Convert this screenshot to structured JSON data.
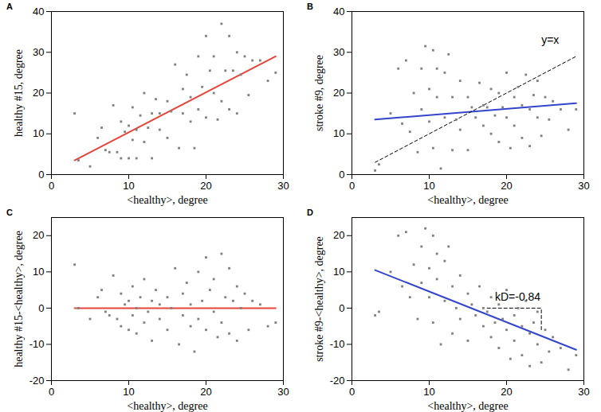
{
  "chart_data": [
    {
      "panel": "A",
      "type": "scatter",
      "x_label": "<healthy>, degree",
      "y_label": "healthy #15, degree",
      "xlim": [
        0,
        30
      ],
      "xticks": [
        0,
        10,
        20,
        30
      ],
      "ylim": [
        0,
        40
      ],
      "yticks": [
        0,
        10,
        20,
        30,
        40
      ],
      "color": "#808080",
      "marker": "square",
      "x": [
        3,
        3.5,
        5,
        6,
        6.5,
        7,
        7.5,
        8,
        8.5,
        9,
        9,
        9.5,
        10,
        10,
        10.5,
        10.5,
        11,
        11,
        11.5,
        12,
        12,
        12.5,
        13,
        13,
        13.5,
        14,
        14,
        15,
        15,
        15.5,
        16,
        16.5,
        17,
        17,
        17.5,
        18,
        18,
        18.5,
        19,
        19,
        19.5,
        20,
        20,
        20.5,
        21,
        21,
        21.5,
        22,
        22,
        22.5,
        23,
        23,
        23.5,
        24,
        24,
        24.5,
        25,
        25.5,
        26,
        27,
        28,
        29
      ],
      "values": [
        15,
        3.5,
        2,
        9,
        11.5,
        6,
        5.5,
        17,
        5.5,
        13,
        4,
        10.5,
        4,
        12,
        8.5,
        16.5,
        4,
        11,
        14.5,
        8,
        20,
        11.5,
        4,
        15,
        18.5,
        11,
        15,
        9,
        18,
        15.5,
        27,
        6.5,
        21,
        15,
        24.5,
        13,
        19,
        6.5,
        29,
        16,
        21.5,
        34,
        14,
        25.5,
        20,
        29,
        13.5,
        37,
        18,
        25.5,
        34,
        16,
        25.5,
        15,
        30,
        24.5,
        29,
        19.5,
        28,
        28,
        23,
        25
      ],
      "lines": [
        {
          "x": [
            3,
            29
          ],
          "values": [
            3.5,
            29
          ],
          "color": "#e8443a",
          "line_style": "solid"
        }
      ],
      "annotations": []
    },
    {
      "panel": "B",
      "type": "scatter",
      "x_label": "<healthy>, degree",
      "y_label": "stroke #9, degree",
      "xlim": [
        0,
        30
      ],
      "xticks": [
        0,
        10,
        20,
        30
      ],
      "ylim": [
        0,
        40
      ],
      "yticks": [
        0,
        10,
        20,
        30,
        40
      ],
      "color": "#808080",
      "marker": "square",
      "x": [
        3,
        3.5,
        5,
        6,
        6.5,
        7,
        7.5,
        8,
        8.5,
        9,
        9,
        9.5,
        10,
        10,
        10.5,
        10.5,
        11,
        11,
        11.5,
        12,
        12,
        12.5,
        13,
        13,
        13.5,
        14,
        14,
        15,
        15,
        15.5,
        16,
        16.5,
        17,
        17,
        17.5,
        18,
        18,
        18.5,
        19,
        19,
        19.5,
        20,
        20,
        20.5,
        21,
        21,
        21.5,
        22,
        22,
        22.5,
        23,
        23,
        23.5,
        24,
        24,
        24.5,
        25,
        25.5,
        26,
        27,
        28,
        29
      ],
      "values": [
        1,
        2.5,
        15,
        26,
        12.5,
        28,
        10.5,
        20,
        5.5,
        26,
        16,
        31.5,
        21,
        13,
        30.5,
        6.5,
        26,
        19,
        1.5,
        25,
        14,
        29.5,
        6,
        19,
        13.5,
        23,
        11,
        19,
        6,
        16.5,
        14,
        22.5,
        12,
        17,
        16.5,
        21,
        10,
        14.5,
        20,
        8,
        16.5,
        25,
        14,
        6.5,
        19,
        12,
        21.5,
        17,
        9,
        24.5,
        16,
        7,
        19.5,
        14,
        23,
        9.5,
        19,
        13.5,
        18,
        16,
        11,
        16
      ],
      "lines": [
        {
          "x": [
            3,
            29
          ],
          "values": [
            13.5,
            17.5
          ],
          "color": "#3344cc",
          "line_style": "solid"
        },
        {
          "x": [
            3,
            29
          ],
          "values": [
            3,
            29
          ],
          "color": "#000000",
          "line_style": "dashed"
        }
      ],
      "annotations": [
        {
          "text": "y=x",
          "x": 24.5,
          "y": 33
        }
      ]
    },
    {
      "panel": "C",
      "type": "scatter",
      "x_label": "<healthy>, degree",
      "y_label": "healthy #15-<healthy>, degree",
      "xlim": [
        0,
        30
      ],
      "xticks": [
        0,
        10,
        20,
        30
      ],
      "ylim": [
        -20,
        25
      ],
      "yticks": [
        -20,
        -10,
        0,
        10,
        20
      ],
      "color": "#808080",
      "marker": "square",
      "x": [
        3,
        3.5,
        5,
        6,
        6.5,
        7,
        7.5,
        8,
        8.5,
        9,
        9,
        9.5,
        10,
        10,
        10.5,
        10.5,
        11,
        11,
        11.5,
        12,
        12,
        12.5,
        13,
        13,
        13.5,
        14,
        14,
        15,
        15,
        15.5,
        16,
        16.5,
        17,
        17,
        17.5,
        18,
        18,
        18.5,
        19,
        19,
        19.5,
        20,
        20,
        20.5,
        21,
        21,
        21.5,
        22,
        22,
        22.5,
        23,
        23,
        23.5,
        24,
        24,
        24.5,
        25,
        25.5,
        26,
        27,
        28,
        29
      ],
      "values": [
        12,
        0,
        -3,
        3,
        5,
        -1,
        -2,
        9,
        -3,
        4,
        -5,
        1,
        -6,
        2,
        -2,
        6,
        -7,
        0,
        3,
        -4,
        8,
        -1,
        -9,
        2,
        5,
        -3,
        1,
        -6,
        3,
        0,
        11,
        -10,
        4,
        -2,
        7,
        -5,
        1,
        -12,
        10,
        -3,
        2,
        14,
        -6,
        5,
        -1,
        8,
        -8,
        15,
        -4,
        3,
        11,
        -7,
        2,
        -9,
        6,
        0,
        4,
        -6,
        2,
        1,
        -5,
        -4
      ],
      "lines": [
        {
          "x": [
            3,
            29
          ],
          "values": [
            0,
            0
          ],
          "color": "#e8443a",
          "line_style": "solid"
        }
      ],
      "annotations": []
    },
    {
      "panel": "D",
      "type": "scatter",
      "x_label": "<healthy>, degree",
      "y_label": "stroke #9-<healthy>, degree",
      "xlim": [
        0,
        30
      ],
      "xticks": [
        0,
        10,
        20,
        30
      ],
      "ylim": [
        -20,
        25
      ],
      "yticks": [
        -20,
        -10,
        0,
        10,
        20
      ],
      "color": "#808080",
      "marker": "square",
      "x": [
        3,
        3.5,
        5,
        6,
        6.5,
        7,
        7.5,
        8,
        8.5,
        9,
        9,
        9.5,
        10,
        10,
        10.5,
        10.5,
        11,
        11,
        11.5,
        12,
        12,
        12.5,
        13,
        13,
        13.5,
        14,
        14,
        15,
        15,
        15.5,
        16,
        16.5,
        17,
        17,
        17.5,
        18,
        18,
        18.5,
        19,
        19,
        19.5,
        20,
        20,
        20.5,
        21,
        21,
        21.5,
        22,
        22,
        22.5,
        23,
        23,
        23.5,
        24,
        24,
        24.5,
        25,
        25.5,
        26,
        27,
        28,
        29
      ],
      "values": [
        -2,
        -1,
        10,
        20,
        6,
        21,
        3,
        12,
        -3,
        17,
        7,
        22,
        11,
        3,
        20,
        -4,
        15,
        8,
        -10,
        13,
        2,
        17,
        -7,
        6,
        0,
        9,
        -3,
        4,
        -9,
        1,
        -2,
        6,
        -5,
        0,
        -1,
        3,
        -8,
        -4,
        1,
        -11,
        -3,
        5,
        -6,
        -14,
        -2,
        -9,
        0,
        -5,
        -13,
        2,
        -7,
        -16,
        -4,
        -10,
        -1,
        -15,
        -6,
        -12,
        -8,
        -11,
        -17,
        -13
      ],
      "lines": [
        {
          "x": [
            3,
            29
          ],
          "values": [
            10.5,
            -11.5
          ],
          "color": "#3344cc",
          "line_style": "solid"
        },
        {
          "x": [
            17.5,
            24.5,
            24.5
          ],
          "values": [
            0,
            0,
            -6.2
          ],
          "color": "#000000",
          "line_style": "dashed"
        }
      ],
      "annotations": [
        {
          "text": "kD=-0.84",
          "x": 18.5,
          "y": 3
        }
      ]
    }
  ]
}
